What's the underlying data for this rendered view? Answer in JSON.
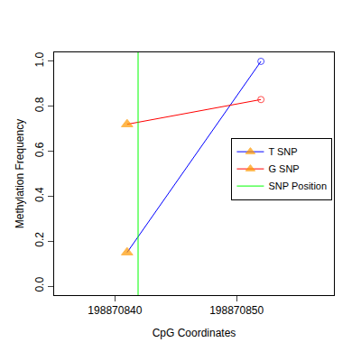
{
  "chart_data": {
    "type": "line",
    "x_label": "CpG Coordinates",
    "y_label": "Methylation Frequency",
    "x": [
      198870841,
      198870852
    ],
    "series": [
      {
        "name": "T SNP",
        "color": "#0000FF",
        "values": [
          0.15,
          1.0
        ]
      },
      {
        "name": "G SNP",
        "color": "#FF0000",
        "values": [
          0.72,
          0.83
        ]
      }
    ],
    "vlines": [
      {
        "name": "SNP Position",
        "x": 198870841.9,
        "color": "#00FF00"
      }
    ],
    "xlim": [
      198870835,
      198870858
    ],
    "xticks": [
      198870840,
      198870850
    ],
    "ylim": [
      -0.04,
      1.04
    ],
    "yticks": [
      {
        "value": 0,
        "label": "0.0"
      },
      {
        "value": 0.2,
        "label": "0.2"
      },
      {
        "value": 0.4,
        "label": "0.4"
      },
      {
        "value": 0.6,
        "label": "0.6"
      },
      {
        "value": 0.8,
        "label": "0.8"
      },
      {
        "value": 1.0,
        "label": "1.0"
      }
    ],
    "grid": false,
    "legend": "right"
  }
}
